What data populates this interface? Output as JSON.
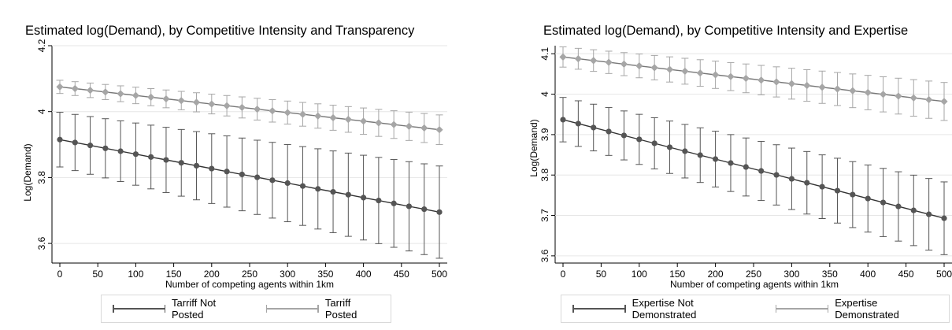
{
  "chart_data": [
    {
      "type": "line",
      "title": "Estimated log(Demand), by Competitive Intensity and Transparency",
      "xlabel": "Number of competing agents within 1km",
      "ylabel": "Log(Demand)",
      "xlim": [
        0,
        500
      ],
      "ylim": [
        3.55,
        4.2
      ],
      "xticks": [
        0,
        50,
        100,
        150,
        200,
        250,
        300,
        350,
        400,
        450,
        500
      ],
      "yticks": [
        3.6,
        3.8,
        4,
        4.2
      ],
      "ytick_labels": [
        "3.6",
        "3.8",
        "4",
        "4.2"
      ],
      "grid": true,
      "legend_position": "bottom",
      "x": [
        0,
        20,
        40,
        60,
        80,
        100,
        120,
        140,
        160,
        180,
        200,
        220,
        240,
        260,
        280,
        300,
        320,
        340,
        360,
        380,
        400,
        420,
        440,
        460,
        480,
        500
      ],
      "series": [
        {
          "name": "Tarriff Not Posted",
          "color": "#555555",
          "y_start": 3.915,
          "y_end": 3.695,
          "ci_start": 0.083,
          "ci_end": 0.14
        },
        {
          "name": "Tarriff Posted",
          "color": "#a6a6a6",
          "y_start": 4.075,
          "y_end": 3.945,
          "ci_start": 0.02,
          "ci_end": 0.045
        }
      ]
    },
    {
      "type": "line",
      "title": "Estimated log(Demand), by Competitive Intensity and Expertise",
      "xlabel": "Number of competing agents within 1km",
      "ylabel": "Log(Demand)",
      "xlim": [
        0,
        500
      ],
      "ylim": [
        3.59,
        4.12
      ],
      "xticks": [
        0,
        50,
        100,
        150,
        200,
        250,
        300,
        350,
        400,
        450,
        500
      ],
      "yticks": [
        3.6,
        3.7,
        3.8,
        3.9,
        4,
        4.1
      ],
      "ytick_labels": [
        "3.6",
        "3.7",
        "3.8",
        "3.9",
        "4",
        "4.1"
      ],
      "grid": true,
      "legend_position": "bottom",
      "x": [
        0,
        20,
        40,
        60,
        80,
        100,
        120,
        140,
        160,
        180,
        200,
        220,
        240,
        260,
        280,
        300,
        320,
        340,
        360,
        380,
        400,
        420,
        440,
        460,
        480,
        500
      ],
      "series": [
        {
          "name": "Expertise Not Demonstrated",
          "color": "#555555",
          "y_start": 3.937,
          "y_end": 3.693,
          "ci_start": 0.055,
          "ci_end": 0.09
        },
        {
          "name": "Expertise Demonstrated",
          "color": "#a6a6a6",
          "y_start": 4.092,
          "y_end": 3.982,
          "ci_start": 0.025,
          "ci_end": 0.047
        }
      ]
    }
  ]
}
